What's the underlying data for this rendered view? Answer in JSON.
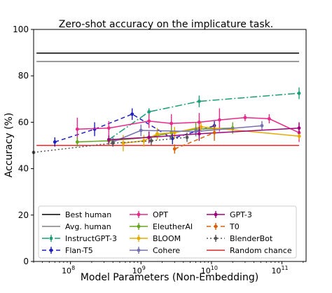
{
  "chart_data": {
    "type": "line",
    "title": "Zero-shot accuracy on the implicature task.",
    "xlabel": "Model Parameters (Non-Embedding)",
    "ylabel": "Accuracy (%)",
    "xscale": "log",
    "xlim": [
      30000000,
      220000000000
    ],
    "ylim": [
      0,
      100
    ],
    "yticks": [
      0,
      20,
      40,
      60,
      80,
      100
    ],
    "xticks": [
      {
        "value": 100000000,
        "base": "10",
        "exp": "8"
      },
      {
        "value": 1000000000,
        "base": "10",
        "exp": "9"
      },
      {
        "value": 10000000000,
        "base": "10",
        "exp": "10"
      },
      {
        "value": 100000000000,
        "base": "10",
        "exp": "11"
      }
    ],
    "legend_position": "lower center",
    "grid": false,
    "reference_lines": [
      {
        "name": "Best human",
        "y": 89.8,
        "color": "#000000"
      },
      {
        "name": "Avg. human",
        "y": 86.2,
        "color": "#808080"
      },
      {
        "name": "Random chance",
        "y": 50.0,
        "color": "#d62728"
      }
    ],
    "series": [
      {
        "name": "InstructGPT-3",
        "color": "#1a9e77",
        "dash": "10,3,2,3",
        "marker": "o",
        "x": [
          350000000,
          1300000000,
          6700000000,
          175000000000
        ],
        "y": [
          52.5,
          64.5,
          69.0,
          72.5
        ],
        "err": [
          1.5,
          1.5,
          2.5,
          2.5
        ]
      },
      {
        "name": "Flan-T5",
        "color": "#1f1fbf",
        "dash": "6,4",
        "marker": "o",
        "x": [
          60000000,
          220000000,
          750000000,
          2800000000,
          11000000000
        ],
        "y": [
          51.5,
          57.0,
          63.5,
          53.0,
          58.5
        ],
        "err": [
          2.0,
          3.0,
          2.5,
          2.5,
          2.0
        ]
      },
      {
        "name": "OPT",
        "color": "#e7298a",
        "dash": "",
        "marker": "o",
        "x": [
          125000000,
          350000000,
          1300000000,
          2700000000,
          6700000000,
          13000000000,
          30000000000,
          66000000000,
          175000000000
        ],
        "y": [
          57.0,
          57.5,
          60.5,
          59.5,
          60.0,
          61.0,
          62.0,
          61.5,
          55.5
        ],
        "err": [
          5.0,
          3.0,
          3.0,
          4.0,
          4.0,
          5.0,
          1.5,
          2.0,
          4.0
        ]
      },
      {
        "name": "EleutherAI",
        "color": "#66a61e",
        "dash": "",
        "marker": "o",
        "x": [
          125000000,
          350000000,
          1300000000,
          2700000000,
          6000000000,
          20000000000
        ],
        "y": [
          51.5,
          52.0,
          53.5,
          55.5,
          57.0,
          57.5
        ],
        "err": [
          2.0,
          2.0,
          2.5,
          2.5,
          3.0,
          2.5
        ]
      },
      {
        "name": "BLOOM",
        "color": "#e6ab02",
        "dash": "",
        "marker": "o",
        "x": [
          560000000,
          1100000000,
          1700000000,
          3000000000,
          7100000000,
          176000000000
        ],
        "y": [
          51.0,
          52.0,
          55.0,
          55.5,
          58.0,
          54.0
        ],
        "err": [
          3.5,
          2.5,
          2.5,
          2.5,
          2.0,
          1.5
        ]
      },
      {
        "name": "Cohere",
        "color": "#7570b3",
        "dash": "",
        "marker": "o",
        "x": [
          400000000,
          1000000000,
          6000000000,
          52000000000
        ],
        "y": [
          51.5,
          56.5,
          56.0,
          58.5
        ],
        "err": [
          2.0,
          2.5,
          2.0,
          2.0
        ]
      },
      {
        "name": "GPT-3",
        "color": "#a0007a",
        "dash": "",
        "marker": "o",
        "x": [
          350000000,
          1300000000,
          6700000000,
          175000000000
        ],
        "y": [
          52.5,
          53.5,
          55.0,
          57.5
        ],
        "err": [
          2.0,
          2.5,
          3.0,
          2.5
        ]
      },
      {
        "name": "T0",
        "color": "#d95f02",
        "dash": "6,4",
        "marker": "o",
        "x": [
          3000000000,
          11000000000
        ],
        "y": [
          48.5,
          55.5
        ],
        "err": [
          2.0,
          3.5
        ]
      },
      {
        "name": "BlenderBot",
        "color": "#555555",
        "dash": "2,3",
        "marker": "o",
        "x": [
          30000000,
          400000000,
          1400000000,
          4500000000
        ],
        "y": [
          47.0,
          51.0,
          52.0,
          53.5
        ],
        "err": [
          0.5,
          1.5,
          2.0,
          2.0
        ]
      }
    ],
    "legend": [
      {
        "name": "Best human",
        "kind": "line",
        "color": "#000000"
      },
      {
        "name": "Avg. human",
        "kind": "line",
        "color": "#808080"
      },
      {
        "name": "InstructGPT-3",
        "kind": "series",
        "color": "#1a9e77",
        "dash": "10,3,2,3"
      },
      {
        "name": "Flan-T5",
        "kind": "series",
        "color": "#1f1fbf",
        "dash": "6,4"
      },
      {
        "name": "OPT",
        "kind": "series",
        "color": "#e7298a",
        "dash": ""
      },
      {
        "name": "EleutherAI",
        "kind": "series",
        "color": "#66a61e",
        "dash": ""
      },
      {
        "name": "BLOOM",
        "kind": "series",
        "color": "#e6ab02",
        "dash": ""
      },
      {
        "name": "Cohere",
        "kind": "series",
        "color": "#7570b3",
        "dash": ""
      },
      {
        "name": "GPT-3",
        "kind": "series",
        "color": "#a0007a",
        "dash": ""
      },
      {
        "name": "T0",
        "kind": "series",
        "color": "#d95f02",
        "dash": "6,4"
      },
      {
        "name": "BlenderBot",
        "kind": "series",
        "color": "#555555",
        "dash": "2,3"
      },
      {
        "name": "Random chance",
        "kind": "line",
        "color": "#d62728"
      }
    ]
  }
}
